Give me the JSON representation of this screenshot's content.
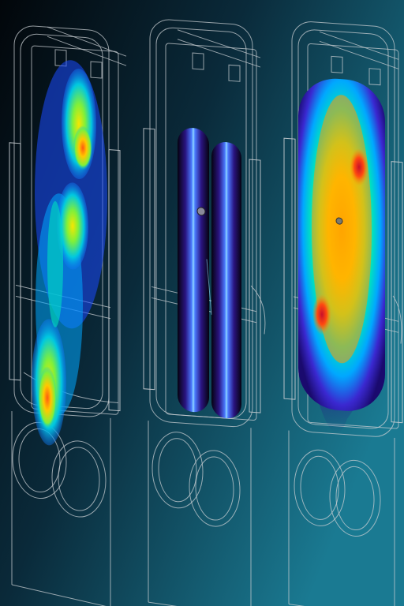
{
  "scene": {
    "background": {
      "from": "#02060a",
      "mid": "#0a2a3a",
      "to": "#1a7a92"
    },
    "wireframe_color": "#c8cdd2",
    "heat_palette": [
      "#1a0a6e",
      "#2a3aff",
      "#00b4ff",
      "#00e0b0",
      "#7ff03a",
      "#f7e600",
      "#ff9a00",
      "#ff3a10",
      "#d0102a"
    ],
    "tubes_palette": {
      "outer": "#0a0420",
      "mid": "#3a1aa0",
      "glow": "#4fc3ff"
    },
    "panels": [
      {
        "name": "left-heat-panel",
        "kind": "scattered-heatmap"
      },
      {
        "name": "middle-tubes-panel",
        "kind": "twin-tubes"
      },
      {
        "name": "right-heat-panel",
        "kind": "full-heatmap"
      }
    ]
  }
}
